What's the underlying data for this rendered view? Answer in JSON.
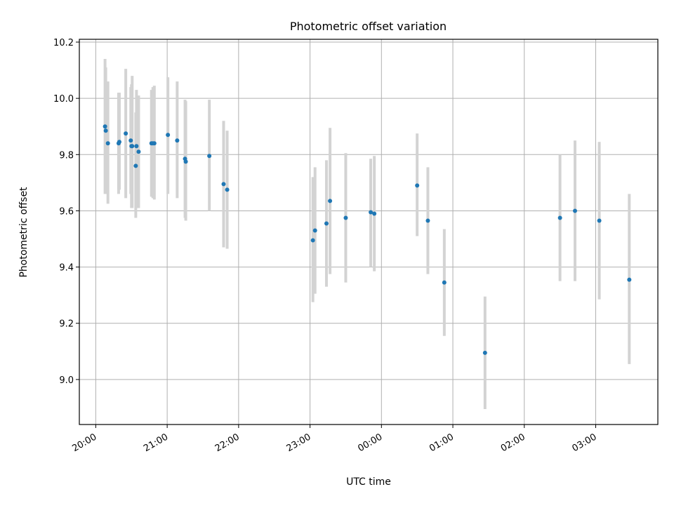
{
  "chart_data": {
    "type": "scatter",
    "title": "Photometric offset variation",
    "xlabel": "UTC time",
    "ylabel": "Photometric offset",
    "grid": true,
    "x_tick_labels": [
      "20:00",
      "21:00",
      "22:00",
      "23:00",
      "00:00",
      "01:00",
      "02:00",
      "03:00"
    ],
    "x_tick_hours": [
      0,
      1,
      2,
      3,
      4,
      5,
      6,
      7
    ],
    "x_origin_label": "20:00",
    "xlim_hours": [
      -0.23,
      7.87
    ],
    "y_ticks": [
      9.0,
      9.2,
      9.4,
      9.6,
      9.8,
      10.0,
      10.2
    ],
    "y_tick_labels": [
      "9.0",
      "9.2",
      "9.4",
      "9.6",
      "9.8",
      "10.0",
      "10.2"
    ],
    "ylim": [
      8.84,
      10.21
    ],
    "colors": {
      "point": "#1f77b4",
      "errorbar": "#d3d3d3",
      "grid": "#b0b0b0",
      "axes": "#000000"
    },
    "series": [
      {
        "points": [
          {
            "t": 0.13,
            "y": 9.9,
            "lo": 9.66,
            "hi": 10.14
          },
          {
            "t": 0.14,
            "y": 9.885,
            "lo": 9.66,
            "hi": 10.11
          },
          {
            "t": 0.17,
            "y": 9.84,
            "lo": 9.625,
            "hi": 10.06
          },
          {
            "t": 0.32,
            "y": 9.84,
            "lo": 9.66,
            "hi": 10.02
          },
          {
            "t": 0.33,
            "y": 9.845,
            "lo": 9.675,
            "hi": 10.02
          },
          {
            "t": 0.42,
            "y": 9.875,
            "lo": 9.645,
            "hi": 10.105
          },
          {
            "t": 0.49,
            "y": 9.85,
            "lo": 9.66,
            "hi": 10.04
          },
          {
            "t": 0.5,
            "y": 9.83,
            "lo": 9.61,
            "hi": 10.05
          },
          {
            "t": 0.51,
            "y": 9.83,
            "lo": 9.61,
            "hi": 10.08
          },
          {
            "t": 0.56,
            "y": 9.76,
            "lo": 9.575,
            "hi": 9.95
          },
          {
            "t": 0.57,
            "y": 9.83,
            "lo": 9.61,
            "hi": 10.03
          },
          {
            "t": 0.6,
            "y": 9.81,
            "lo": 9.61,
            "hi": 10.01
          },
          {
            "t": 0.78,
            "y": 9.84,
            "lo": 9.65,
            "hi": 10.03
          },
          {
            "t": 0.8,
            "y": 9.84,
            "lo": 9.645,
            "hi": 10.04
          },
          {
            "t": 0.82,
            "y": 9.84,
            "lo": 9.64,
            "hi": 10.045
          },
          {
            "t": 1.01,
            "y": 9.87,
            "lo": 9.66,
            "hi": 10.075
          },
          {
            "t": 1.14,
            "y": 9.85,
            "lo": 9.645,
            "hi": 10.06
          },
          {
            "t": 1.25,
            "y": 9.785,
            "lo": 9.575,
            "hi": 9.995
          },
          {
            "t": 1.26,
            "y": 9.775,
            "lo": 9.565,
            "hi": 9.99
          },
          {
            "t": 1.59,
            "y": 9.795,
            "lo": 9.6,
            "hi": 9.995
          },
          {
            "t": 1.79,
            "y": 9.695,
            "lo": 9.47,
            "hi": 9.92
          },
          {
            "t": 1.84,
            "y": 9.675,
            "lo": 9.465,
            "hi": 9.885
          },
          {
            "t": 3.04,
            "y": 9.495,
            "lo": 9.275,
            "hi": 9.72
          },
          {
            "t": 3.07,
            "y": 9.53,
            "lo": 9.305,
            "hi": 9.755
          },
          {
            "t": 3.23,
            "y": 9.555,
            "lo": 9.33,
            "hi": 9.78
          },
          {
            "t": 3.28,
            "y": 9.635,
            "lo": 9.375,
            "hi": 9.895
          },
          {
            "t": 3.5,
            "y": 9.575,
            "lo": 9.345,
            "hi": 9.805
          },
          {
            "t": 3.85,
            "y": 9.595,
            "lo": 9.4,
            "hi": 9.785
          },
          {
            "t": 3.9,
            "y": 9.59,
            "lo": 9.385,
            "hi": 9.795
          },
          {
            "t": 4.5,
            "y": 9.69,
            "lo": 9.51,
            "hi": 9.875
          },
          {
            "t": 4.65,
            "y": 9.565,
            "lo": 9.375,
            "hi": 9.755
          },
          {
            "t": 4.88,
            "y": 9.345,
            "lo": 9.155,
            "hi": 9.535
          },
          {
            "t": 5.45,
            "y": 9.095,
            "lo": 8.895,
            "hi": 9.295
          },
          {
            "t": 6.5,
            "y": 9.575,
            "lo": 9.35,
            "hi": 9.8
          },
          {
            "t": 6.71,
            "y": 9.6,
            "lo": 9.35,
            "hi": 9.85
          },
          {
            "t": 7.05,
            "y": 9.565,
            "lo": 9.285,
            "hi": 9.845
          },
          {
            "t": 7.47,
            "y": 9.355,
            "lo": 9.055,
            "hi": 9.66
          }
        ]
      }
    ]
  }
}
